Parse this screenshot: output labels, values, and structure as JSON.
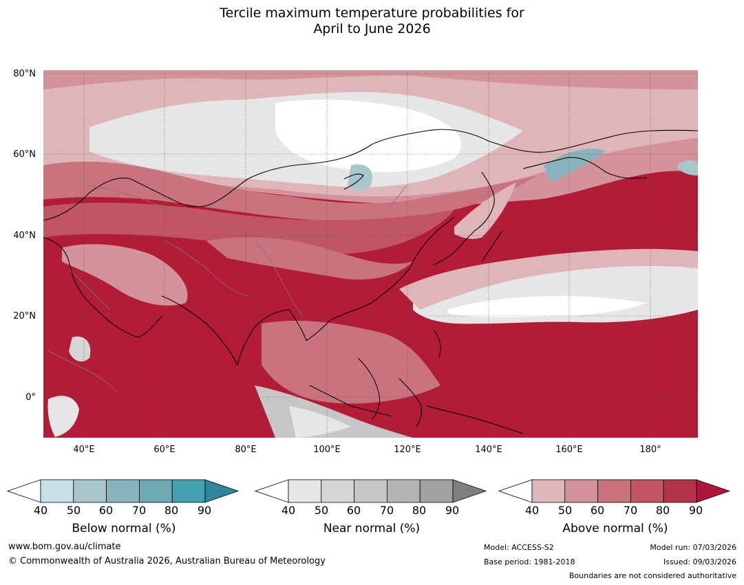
{
  "title": {
    "line1": "Tercile maximum temperature probabilities for",
    "line2": "April to June 2026"
  },
  "map": {
    "lat_labels": [
      "80°N",
      "60°N",
      "40°N",
      "20°N",
      "0°"
    ],
    "lon_labels": [
      "40°E",
      "60°E",
      "80°E",
      "100°E",
      "120°E",
      "140°E",
      "160°E",
      "180°"
    ],
    "ocean_color": "#b31c37",
    "land_color": "#c6404f"
  },
  "legends": [
    {
      "title": "Below normal (%)",
      "ticks": [
        "40",
        "50",
        "60",
        "70",
        "80",
        "90"
      ],
      "colors": [
        "#ffffff",
        "#c7dfe5",
        "#a7c6cc",
        "#88b4bf",
        "#6eaab6",
        "#449fae",
        "#2e879a"
      ]
    },
    {
      "title": "Near normal (%)",
      "ticks": [
        "40",
        "50",
        "60",
        "70",
        "80",
        "90"
      ],
      "colors": [
        "#ffffff",
        "#e6e6e6",
        "#d6d6d6",
        "#c6c6c6",
        "#b4b4b4",
        "#a2a2a2",
        "#7f7f7f"
      ]
    },
    {
      "title": "Above normal (%)",
      "ticks": [
        "40",
        "50",
        "60",
        "70",
        "80",
        "90"
      ],
      "colors": [
        "#ffffff",
        "#dfb5ba",
        "#d4939b",
        "#c9737e",
        "#c15465",
        "#b6344a",
        "#b0163a"
      ]
    }
  ],
  "footer": {
    "website": "www.bom.gov.au/climate",
    "copyright": "© Commonwealth of Australia 2026, Australian Bureau of Meteorology",
    "model": "Model: ACCESS-S2",
    "base_period": "Base period: 1981-2018",
    "model_run": "Model run: 07/03/2026",
    "issued": "Issued: 09/03/2026",
    "disclaimer": "Boundaries are not considered authoritative"
  }
}
